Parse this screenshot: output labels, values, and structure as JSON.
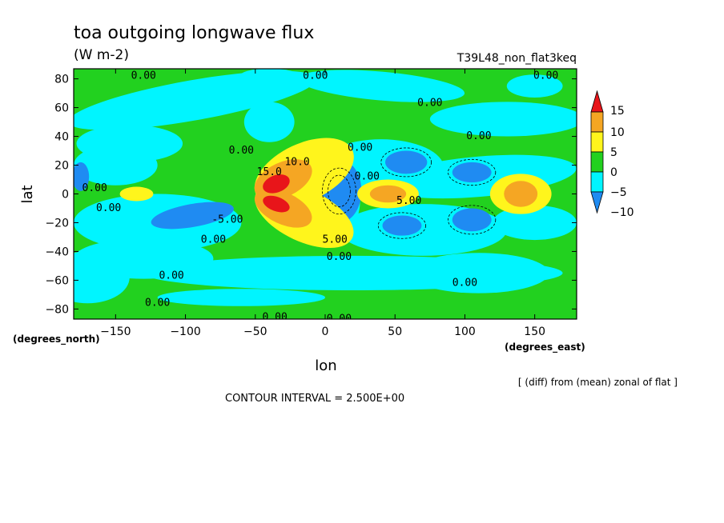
{
  "chart_data": {
    "type": "heatmap",
    "title": "toa outgoing longwave flux",
    "subtitle": "(W m-2)",
    "run_label": "T39L48_non_flat3keq",
    "xlabel": "lon",
    "ylabel": "lat",
    "x_units": "(degrees_east)",
    "y_units": "(degrees_north)",
    "xlim": [
      -180,
      180
    ],
    "ylim": [
      -87,
      87
    ],
    "x_ticks": [
      -150,
      -100,
      -50,
      0,
      50,
      100,
      150
    ],
    "y_ticks": [
      80,
      60,
      40,
      20,
      0,
      -20,
      -40,
      -60,
      -80
    ],
    "colorbar": {
      "levels": [
        15,
        10,
        5,
        0,
        -5,
        -10
      ],
      "colors": [
        "#e8151a",
        "#f5a623",
        "#fff51c",
        "#22d11f",
        "#00f5ff",
        "#1f8bf2"
      ],
      "extend": "both"
    },
    "contour_labels": [
      {
        "text": "0.00",
        "lon": -130,
        "lat": 82
      },
      {
        "text": "0.00",
        "lon": -7,
        "lat": 82
      },
      {
        "text": "0.00",
        "lon": 158,
        "lat": 82
      },
      {
        "text": "0.00",
        "lon": 75,
        "lat": 63
      },
      {
        "text": "0.00",
        "lon": 110,
        "lat": 40
      },
      {
        "text": "0.00",
        "lon": -60,
        "lat": 30
      },
      {
        "text": "0.00",
        "lon": 25,
        "lat": 32
      },
      {
        "text": "0.00",
        "lon": -165,
        "lat": 4
      },
      {
        "text": "0.00",
        "lon": -155,
        "lat": -10
      },
      {
        "text": "0.00",
        "lon": 30,
        "lat": 12
      },
      {
        "text": "-5.00",
        "lon": -70,
        "lat": -18
      },
      {
        "text": "0.00",
        "lon": -80,
        "lat": -32
      },
      {
        "text": "0.00",
        "lon": -110,
        "lat": -57
      },
      {
        "text": "0.00",
        "lon": 10,
        "lat": -44
      },
      {
        "text": "0.00",
        "lon": 100,
        "lat": -62
      },
      {
        "text": "0.00",
        "lon": -120,
        "lat": -76
      },
      {
        "text": "0.00",
        "lon": -36,
        "lat": -86
      },
      {
        "text": "0.00",
        "lon": 10,
        "lat": -87
      },
      {
        "text": "5.00",
        "lon": 7,
        "lat": -32
      },
      {
        "text": "5.00",
        "lon": 60,
        "lat": -5
      },
      {
        "text": "10.0",
        "lon": -20,
        "lat": 22
      },
      {
        "text": "15.0",
        "lon": -40,
        "lat": 15
      }
    ],
    "grid": false
  },
  "footer": {
    "note": "[ (diff) from (mean) zonal of flat ]",
    "contour_interval": "CONTOUR INTERVAL = 2.500E+00"
  }
}
